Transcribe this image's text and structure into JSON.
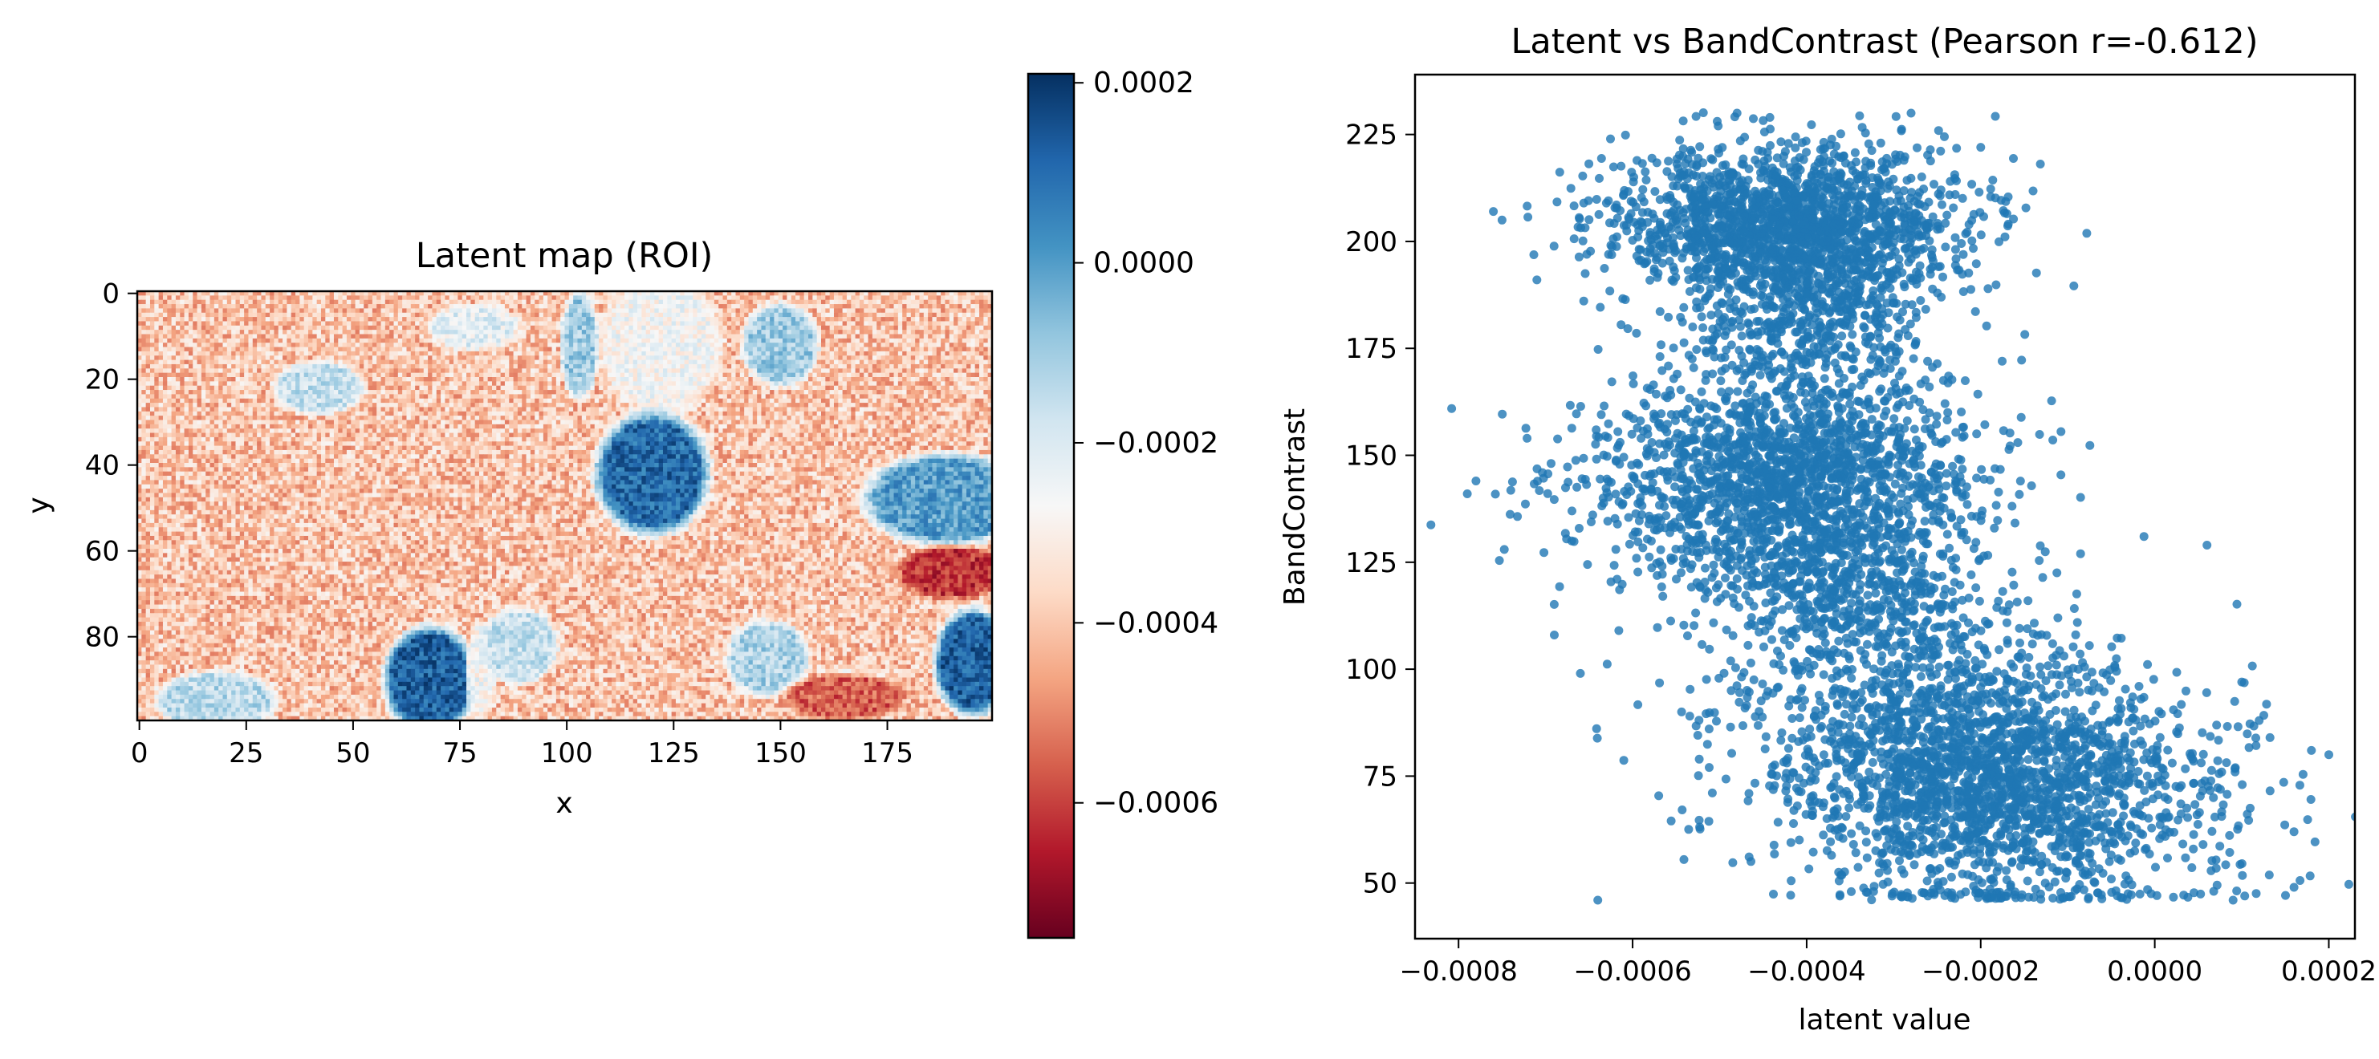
{
  "chart_data": [
    {
      "type": "heatmap",
      "title": "Latent map (ROI)",
      "xlabel": "x",
      "ylabel": "y",
      "grid": false,
      "x_range": [
        0,
        199
      ],
      "y_range": [
        0,
        99
      ],
      "y_inverted": true,
      "x_ticks": [
        "0",
        "25",
        "50",
        "75",
        "100",
        "125",
        "150",
        "175"
      ],
      "x_tick_values": [
        0,
        25,
        50,
        75,
        100,
        125,
        150,
        175
      ],
      "y_ticks": [
        "0",
        "20",
        "40",
        "60",
        "80"
      ],
      "y_tick_values": [
        0,
        20,
        40,
        60,
        80
      ],
      "colormap": "RdBu",
      "colorbar": {
        "min": -0.00075,
        "max": 0.00021,
        "ticks": [
          "0.0002",
          "0.0000",
          "−0.0002",
          "−0.0004",
          "−0.0006"
        ],
        "tick_values": [
          0.0002,
          0.0,
          -0.0002,
          -0.0004,
          -0.0006
        ],
        "color_low": "#67001f",
        "color_high": "#053061"
      },
      "background_value": -0.0004,
      "noise_amplitude": 0.00012,
      "regions": [
        {
          "cx": 42,
          "cy": 22,
          "rx": 12,
          "ry": 7,
          "value": -0.00016
        },
        {
          "cx": 78,
          "cy": 8,
          "rx": 12,
          "ry": 6,
          "value": -0.00022
        },
        {
          "cx": 103,
          "cy": 12,
          "rx": 5,
          "ry": 14,
          "value": -0.0001
        },
        {
          "cx": 122,
          "cy": 12,
          "rx": 16,
          "ry": 18,
          "value": -0.00026
        },
        {
          "cx": 120,
          "cy": 42,
          "rx": 15,
          "ry": 16,
          "value": 0.0001
        },
        {
          "cx": 150,
          "cy": 12,
          "rx": 10,
          "ry": 11,
          "value": -0.0001
        },
        {
          "cx": 189,
          "cy": 48,
          "rx": 22,
          "ry": 12,
          "value": 0.0
        },
        {
          "cx": 68,
          "cy": 90,
          "rx": 12,
          "ry": 14,
          "value": 0.00012
        },
        {
          "cx": 80,
          "cy": 88,
          "rx": 4,
          "ry": 13,
          "value": -0.00026
        },
        {
          "cx": 89,
          "cy": 82,
          "rx": 10,
          "ry": 10,
          "value": -0.00016
        },
        {
          "cx": 18,
          "cy": 95,
          "rx": 16,
          "ry": 8,
          "value": -0.00014
        },
        {
          "cx": 147,
          "cy": 85,
          "rx": 11,
          "ry": 10,
          "value": -0.00012
        },
        {
          "cx": 195,
          "cy": 86,
          "rx": 10,
          "ry": 14,
          "value": 0.00012
        },
        {
          "cx": 168,
          "cy": 92,
          "rx": 10,
          "ry": 6,
          "value": -0.00032
        },
        {
          "cx": 190,
          "cy": 65,
          "rx": 14,
          "ry": 7,
          "value": -0.00062
        },
        {
          "cx": 165,
          "cy": 94,
          "rx": 16,
          "ry": 6,
          "value": -0.00056
        }
      ]
    },
    {
      "type": "scatter",
      "title": "Latent vs BandContrast (Pearson r=-0.612)",
      "xlabel": "latent value",
      "ylabel": "BandContrast",
      "grid": false,
      "xlim": [
        -0.00085,
        0.00023
      ],
      "ylim": [
        37,
        239
      ],
      "x_ticks": [
        "−0.0008",
        "−0.0006",
        "−0.0004",
        "−0.0002",
        "0.0000",
        "0.0002"
      ],
      "x_tick_values": [
        -0.0008,
        -0.0006,
        -0.0004,
        -0.0002,
        0.0,
        0.0002
      ],
      "y_ticks": [
        "50",
        "75",
        "100",
        "125",
        "150",
        "175",
        "200",
        "225"
      ],
      "y_tick_values": [
        50,
        75,
        100,
        125,
        150,
        175,
        200,
        225
      ],
      "marker_color": "#1f77b4",
      "y_floor": 46,
      "series": [
        {
          "cluster_center": [
            -0.00042,
            204
          ],
          "spread": [
            0.0001,
            9
          ],
          "count": 1700
        },
        {
          "cluster_center": [
            -0.0004,
            180
          ],
          "spread": [
            8e-05,
            12
          ],
          "count": 600
        },
        {
          "cluster_center": [
            -0.00043,
            143
          ],
          "spread": [
            0.00011,
            12
          ],
          "count": 1700
        },
        {
          "cluster_center": [
            -0.00036,
            118
          ],
          "spread": [
            9e-05,
            10
          ],
          "count": 500
        },
        {
          "cluster_center": [
            -0.00018,
            72
          ],
          "spread": [
            0.00013,
            14
          ],
          "count": 2000
        },
        {
          "cluster_center": [
            -0.00028,
            95
          ],
          "spread": [
            0.00012,
            14
          ],
          "count": 500
        }
      ],
      "outliers": [
        [
          -0.00079,
          141
        ],
        [
          -0.00078,
          144
        ],
        [
          -0.00076,
          207
        ],
        [
          -0.00075,
          205
        ],
        [
          -0.00071,
          191
        ],
        [
          -0.00066,
          99
        ],
        [
          -0.00064,
          46
        ],
        [
          -0.00067,
          130
        ],
        [
          -0.00069,
          108
        ],
        [
          0.0002,
          80
        ],
        [
          0.00018,
          81
        ],
        [
          0.00012,
          88
        ],
        [
          0.00016,
          62
        ],
        [
          0.0001,
          97
        ],
        [
          -0.00048,
          230
        ],
        [
          -0.00028,
          230
        ],
        [
          -0.0002,
          222
        ],
        [
          6e-05,
          129
        ],
        [
          9e-05,
          46
        ],
        [
          0.00016,
          49
        ]
      ]
    }
  ]
}
